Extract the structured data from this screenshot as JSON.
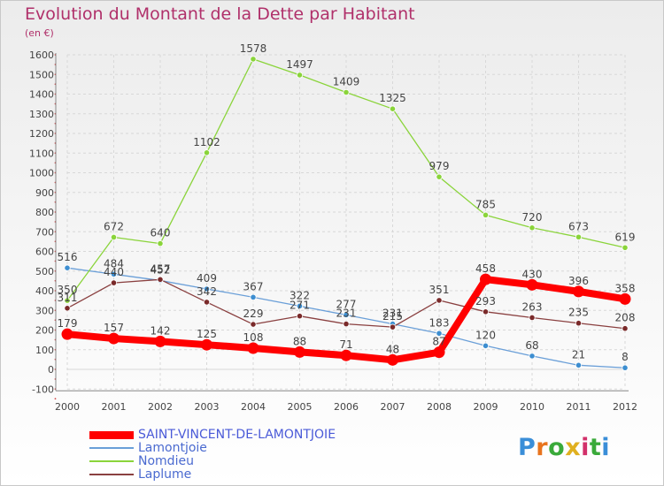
{
  "header": {
    "title": "Evolution du Montant de la Dette par Habitant",
    "subtitle": "(en €)"
  },
  "logo": {
    "text": "Proxiti",
    "letter_colors": [
      "#3a8ed8",
      "#e8741e",
      "#3aaa3a",
      "#e0b020",
      "#d2306a",
      "#3aaa3a",
      "#3a8ed8"
    ]
  },
  "chart_data": {
    "type": "line",
    "x": [
      "2000",
      "2001",
      "2002",
      "2003",
      "2004",
      "2005",
      "2006",
      "2007",
      "2008",
      "2009",
      "2010",
      "2011",
      "2012"
    ],
    "ylim": [
      -100,
      1600
    ],
    "yticks": [
      "-100",
      "0",
      "100",
      "200",
      "300",
      "400",
      "500",
      "600",
      "700",
      "800",
      "900",
      "1000",
      "1100",
      "1200",
      "1300",
      "1400",
      "1500",
      "1600"
    ],
    "grid": true,
    "legend_position": "bottom-left",
    "series": [
      {
        "name": "SAINT-VINCENT-DE-LAMONTJOIE",
        "color": "#ff0000",
        "line_color": "#ff0000",
        "thick": true,
        "values": [
          179,
          157,
          142,
          125,
          108,
          88,
          71,
          48,
          87,
          458,
          430,
          396,
          358
        ]
      },
      {
        "name": "Lamontjoie",
        "color": "#3d8ed0",
        "line_color": "#6a9fd8",
        "thick": false,
        "values": [
          516,
          484,
          452,
          409,
          367,
          322,
          277,
          231,
          183,
          120,
          68,
          21,
          8
        ]
      },
      {
        "name": "Nomdieu",
        "color": "#8ad43a",
        "line_color": "#8ad43a",
        "thick": false,
        "values": [
          350,
          672,
          640,
          1102,
          1578,
          1497,
          1409,
          1325,
          979,
          785,
          720,
          673,
          619
        ]
      },
      {
        "name": "Laplume",
        "color": "#7a2a2a",
        "line_color": "#8a4040",
        "thick": false,
        "values": [
          311,
          440,
          457,
          342,
          229,
          271,
          231,
          215,
          351,
          293,
          263,
          235,
          208
        ]
      }
    ]
  }
}
